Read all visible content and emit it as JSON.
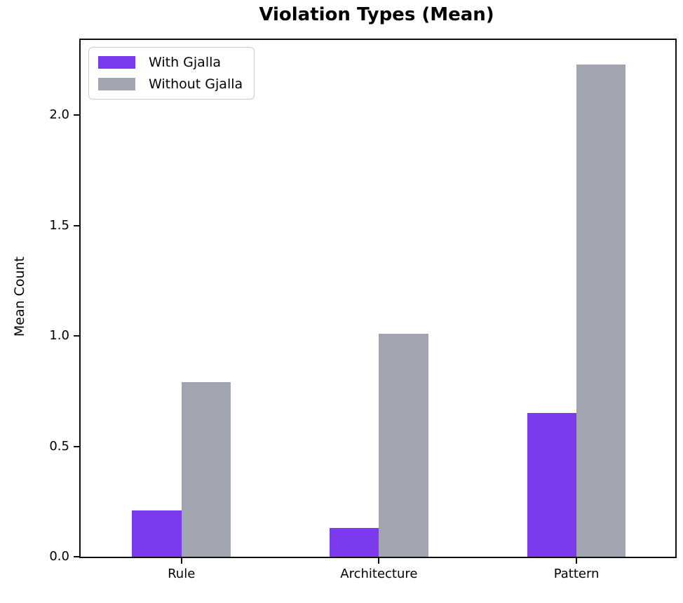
{
  "chart": {
    "title": "Violation Types (Mean)",
    "accent_color": "#7C3AED",
    "muted_color": "#A0A5AF",
    "legend": {
      "entries": [
        "With Gjalla",
        "Without Gjalla"
      ]
    }
  },
  "chart_data": {
    "type": "bar",
    "title": "Violation Types (Mean)",
    "xlabel": "",
    "ylabel": "Mean Count",
    "categories": [
      "Rule",
      "Architecture",
      "Pattern"
    ],
    "series": [
      {
        "name": "With Gjalla",
        "color": "#7C3AED",
        "values": [
          0.21,
          0.13,
          0.65
        ]
      },
      {
        "name": "Without Gjalla",
        "color": "#A0A5AF",
        "values": [
          0.79,
          1.01,
          2.23
        ]
      }
    ],
    "ylim": [
      0,
      2.34
    ],
    "xlim": [
      -0.51,
      2.5
    ],
    "yticks": [
      0.0,
      0.5,
      1.0,
      1.5,
      2.0
    ],
    "bar_width": 0.25,
    "grid": false,
    "legend_position": "upper left"
  }
}
